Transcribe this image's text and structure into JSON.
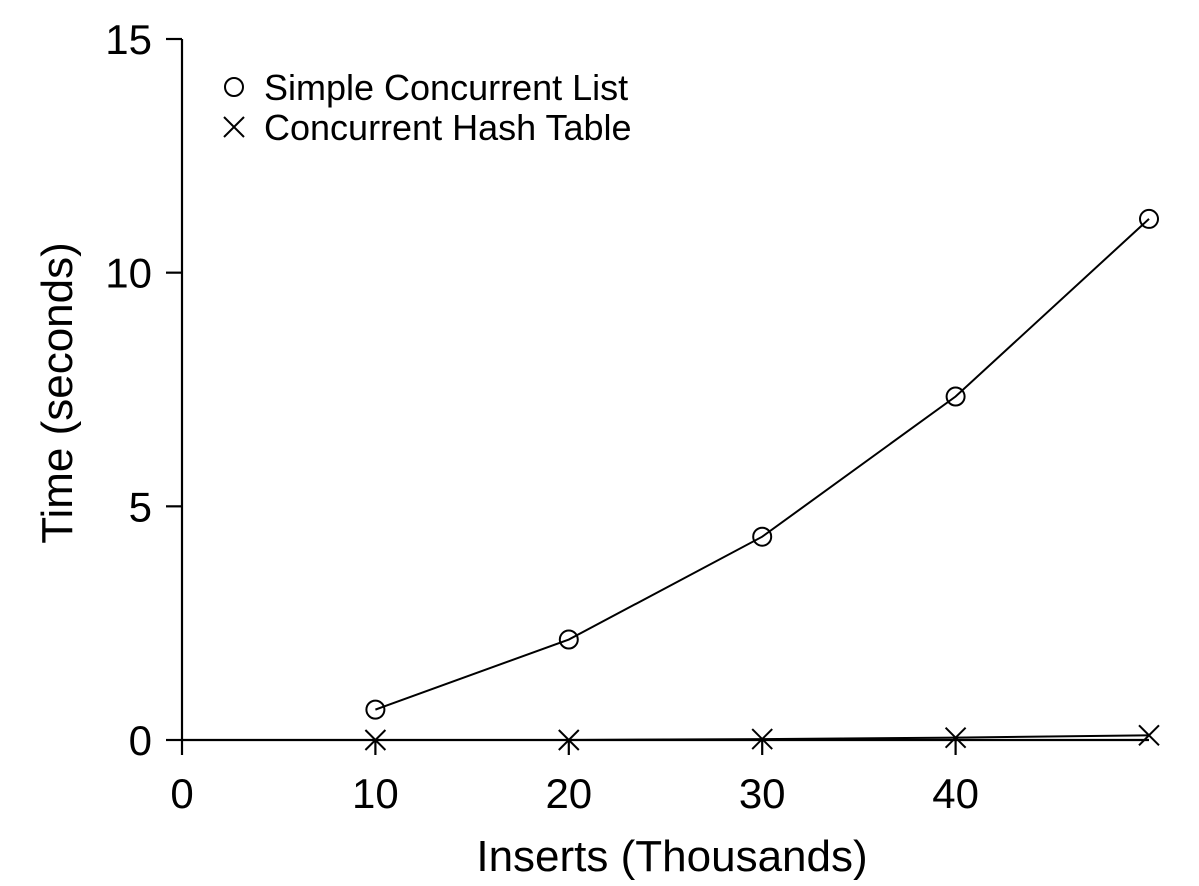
{
  "chart_data": {
    "type": "line",
    "xlabel": "Inserts (Thousands)",
    "ylabel": "Time (seconds)",
    "xlim": [
      0,
      50
    ],
    "ylim": [
      0,
      15
    ],
    "x_ticks": [
      "0",
      "10",
      "20",
      "30",
      "40"
    ],
    "y_ticks": [
      "0",
      "5",
      "10",
      "15"
    ],
    "grid": false,
    "legend_position": "top-left",
    "series": [
      {
        "name": "Simple Concurrent List",
        "marker": "circle",
        "x": [
          10,
          20,
          30,
          40,
          50
        ],
        "y": [
          0.65,
          2.15,
          4.35,
          7.35,
          11.15
        ]
      },
      {
        "name": "Concurrent Hash Table",
        "marker": "x",
        "x": [
          10,
          20,
          30,
          40,
          50
        ],
        "y": [
          0.0,
          0.0,
          0.02,
          0.05,
          0.1
        ]
      }
    ]
  }
}
